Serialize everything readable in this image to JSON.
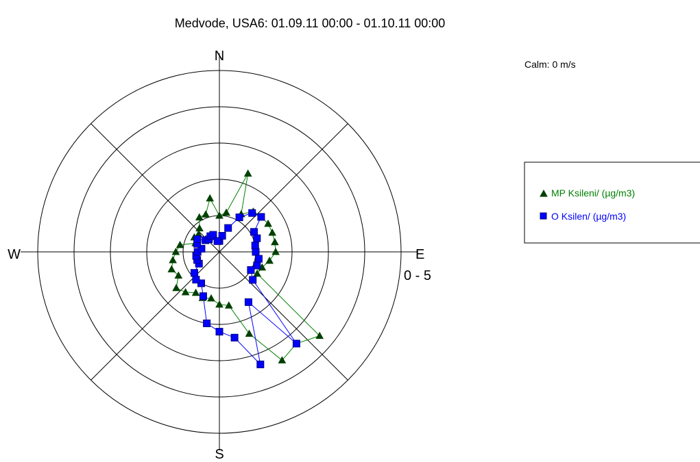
{
  "chart_data": {
    "type": "polar-line",
    "title": "Medvode, USA6: 01.09.11 00:00 - 01.10.11 00:00",
    "calm_label": "Calm: 0 m/s",
    "speed_label": "0 - 5",
    "directions": {
      "n": "N",
      "e": "E",
      "s": "S",
      "w": "W"
    },
    "radial_range": [
      0,
      5
    ],
    "grid": true,
    "legend_position": "right",
    "angles": [
      0,
      10,
      20,
      30,
      40,
      50,
      60,
      70,
      80,
      90,
      100,
      110,
      120,
      130,
      140,
      150,
      160,
      170,
      180,
      190,
      200,
      210,
      220,
      230,
      240,
      250,
      260,
      270,
      280,
      290,
      300,
      310,
      320,
      330,
      340,
      350
    ],
    "series": [
      {
        "name": "MP Ksileni/ (µg/m3)",
        "color": "#008000",
        "marker": "triangle",
        "values": [
          1.0,
          1.1,
          2.3,
          1.2,
          1.45,
          1.5,
          1.55,
          1.55,
          1.55,
          1.55,
          1.4,
          1.25,
          1.2,
          3.6,
          3.3,
          3.45,
          2.4,
          1.5,
          1.45,
          1.3,
          1.35,
          1.3,
          1.45,
          1.55,
          1.3,
          1.4,
          1.3,
          1.2,
          1.1,
          0.7,
          0.8,
          0.75,
          0.85,
          1.1,
          1.1,
          1.5
        ]
      },
      {
        "name": "O Ksilen/ (µg/m3)",
        "color": "#0000ff",
        "marker": "square",
        "values": [
          0.3,
          0.45,
          0.7,
          1.1,
          1.4,
          1.5,
          1.1,
          1.1,
          1.0,
          1.0,
          1.1,
          1.1,
          1.0,
          1.2,
          3.3,
          1.6,
          3.3,
          2.4,
          2.2,
          2.0,
          1.3,
          1.0,
          1.0,
          0.9,
          0.65,
          0.65,
          0.65,
          0.6,
          0.5,
          0.65,
          0.7,
          0.5,
          0.45,
          0.5,
          0.5,
          0.3
        ]
      }
    ]
  }
}
